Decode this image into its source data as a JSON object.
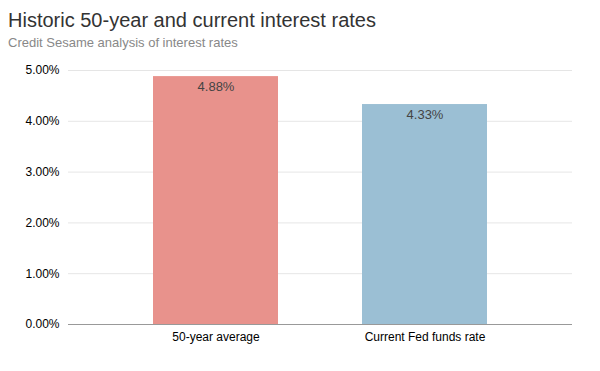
{
  "chart_data": {
    "type": "bar",
    "title": "Historic 50-year and current interest rates",
    "subtitle": "Credit Sesame analysis of interest rates",
    "categories": [
      "50-year average",
      "Current Fed funds rate"
    ],
    "values": [
      4.88,
      4.33
    ],
    "value_labels": [
      "4.88%",
      "4.33%"
    ],
    "data_labels": true,
    "colors": [
      "#e8928c",
      "#9bbfd4"
    ],
    "ylim": [
      0,
      5.0
    ],
    "yticks": [
      {
        "value": 0.0,
        "label": "0.00%"
      },
      {
        "value": 1.0,
        "label": "1.00%"
      },
      {
        "value": 2.0,
        "label": "2.00%"
      },
      {
        "value": 3.0,
        "label": "3.00%"
      },
      {
        "value": 4.0,
        "label": "4.00%"
      },
      {
        "value": 5.0,
        "label": "5.00%"
      }
    ],
    "grid": true
  }
}
